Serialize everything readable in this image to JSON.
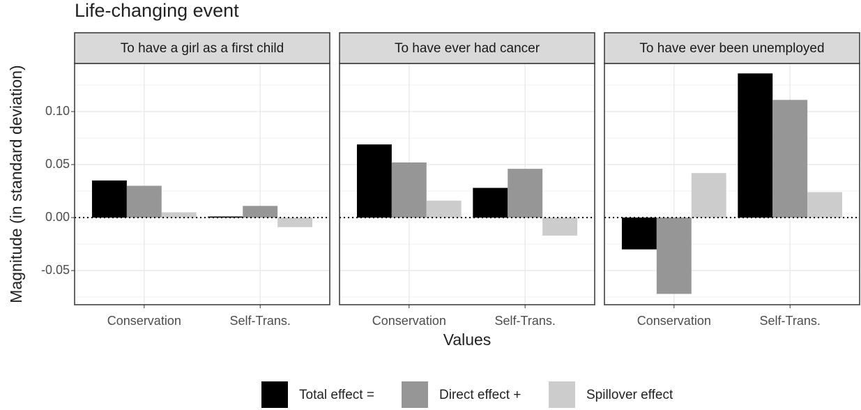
{
  "chart_data": {
    "type": "bar",
    "title": "Life-changing event",
    "xlabel": "Values",
    "ylabel": "Magnitude (in standard deviation)",
    "facets": [
      "To have a girl as a first child",
      "To have ever had cancer",
      "To have ever been unemployed"
    ],
    "categories": [
      "Conservation",
      "Self-Trans."
    ],
    "series": [
      {
        "name": "Total effect =",
        "color": "#000000",
        "values": [
          [
            0.035,
            0.001
          ],
          [
            0.069,
            0.028
          ],
          [
            -0.03,
            0.136
          ]
        ]
      },
      {
        "name": "Direct effect +",
        "color": "#969696",
        "values": [
          [
            0.03,
            0.011
          ],
          [
            0.052,
            0.046
          ],
          [
            -0.072,
            0.111
          ]
        ]
      },
      {
        "name": "Spillover effect",
        "color": "#cccccc",
        "values": [
          [
            0.005,
            -0.009
          ],
          [
            0.016,
            -0.017
          ],
          [
            0.042,
            0.024
          ]
        ]
      }
    ],
    "ylim": [
      -0.0822,
      0.1454
    ],
    "yticks": [
      -0.05,
      {
        "value": 0,
        "label": "0.00"
      },
      0.05,
      {
        "value": 0.1,
        "label": "0.10"
      }
    ],
    "grid": true,
    "legend": "bottom"
  }
}
